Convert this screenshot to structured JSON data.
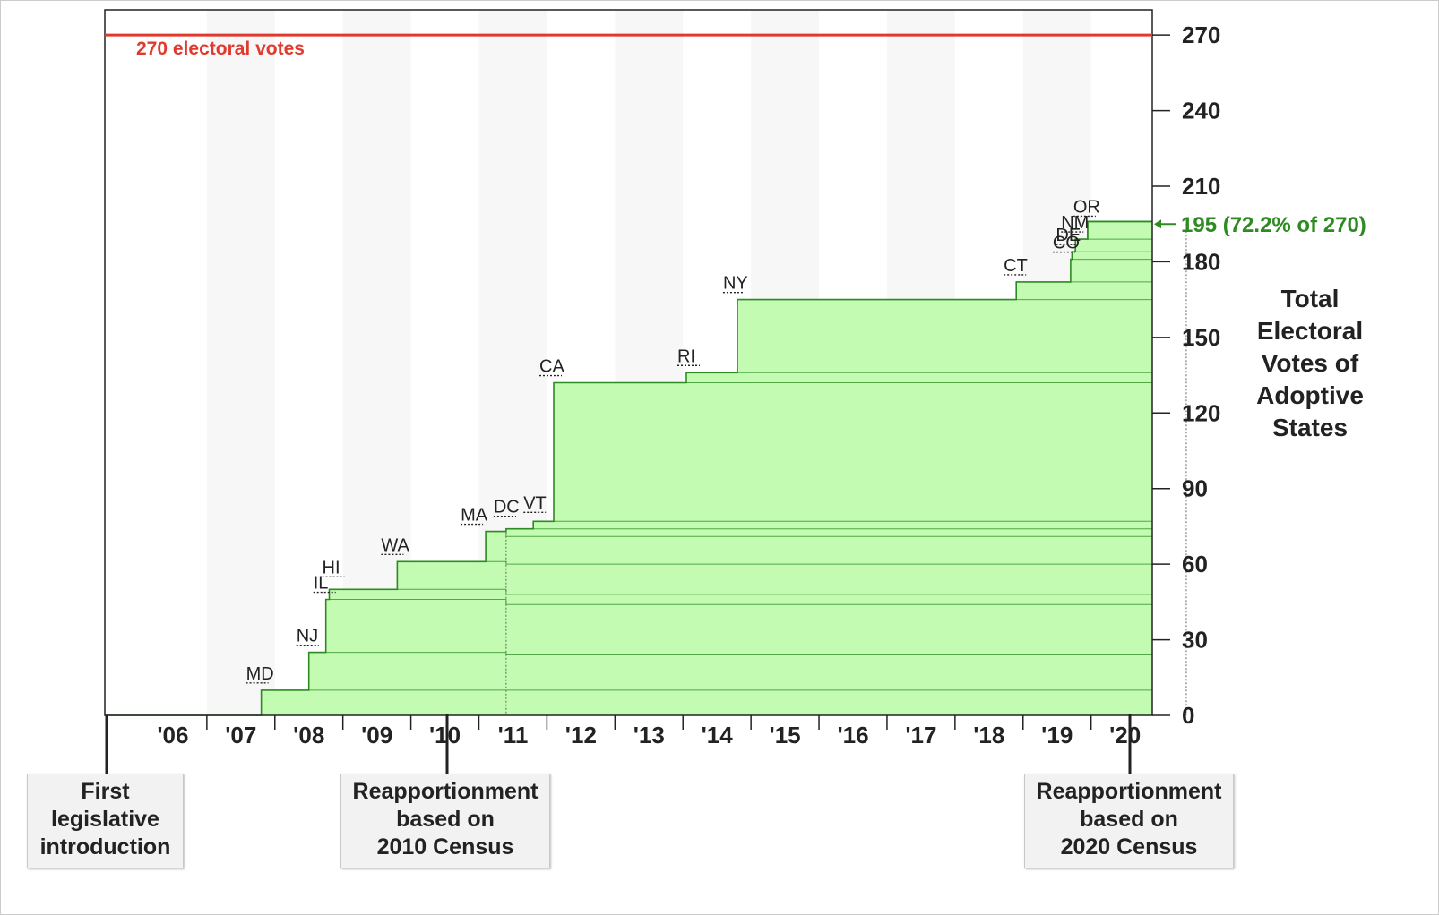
{
  "chart_data": {
    "type": "area",
    "title": "",
    "xlabel": "",
    "ylabel_lines": [
      "Total",
      "Electoral",
      "Votes of",
      "Adoptive",
      "States"
    ],
    "ylim": [
      0,
      280
    ],
    "y_ticks": [
      0,
      30,
      60,
      90,
      120,
      150,
      180,
      210,
      240,
      270
    ],
    "y_axis_side": "right",
    "x_range": [
      2005.0,
      2020.4
    ],
    "x_ticks": [
      {
        "label": "'06",
        "year": 2006
      },
      {
        "label": "'07",
        "year": 2007
      },
      {
        "label": "'08",
        "year": 2008
      },
      {
        "label": "'09",
        "year": 2009
      },
      {
        "label": "'10",
        "year": 2010
      },
      {
        "label": "'11",
        "year": 2011
      },
      {
        "label": "'12",
        "year": 2012
      },
      {
        "label": "'13",
        "year": 2013
      },
      {
        "label": "'14",
        "year": 2014
      },
      {
        "label": "'15",
        "year": 2015
      },
      {
        "label": "'16",
        "year": 2016
      },
      {
        "label": "'17",
        "year": 2017
      },
      {
        "label": "'18",
        "year": 2018
      },
      {
        "label": "'19",
        "year": 2019
      },
      {
        "label": "'20",
        "year": 2020
      }
    ],
    "threshold": {
      "value": 270,
      "label": "270 electoral votes",
      "color": "#e03a2e"
    },
    "current": {
      "value": 195,
      "label": "195 (72.2% of 270)",
      "color": "#2e8b22"
    },
    "series": [
      {
        "state": "MD",
        "date": 2007.3,
        "ev_2000": 10,
        "ev_2010": 10,
        "ev_2020": 10
      },
      {
        "state": "NJ",
        "date": 2008.0,
        "ev_2000": 15,
        "ev_2010": 14,
        "ev_2020": 14
      },
      {
        "state": "IL",
        "date": 2008.25,
        "ev_2000": 21,
        "ev_2010": 20,
        "ev_2020": 19
      },
      {
        "state": "HI",
        "date": 2008.3,
        "ev_2000": 4,
        "ev_2010": 4,
        "ev_2020": 4
      },
      {
        "state": "WA",
        "date": 2009.3,
        "ev_2000": 11,
        "ev_2010": 12,
        "ev_2020": 12
      },
      {
        "state": "MA",
        "date": 2010.6,
        "ev_2000": 12,
        "ev_2010": 11,
        "ev_2020": 11
      },
      {
        "state": "DC",
        "date": 2010.9,
        "ev_2000": 3,
        "ev_2010": 3,
        "ev_2020": 3
      },
      {
        "state": "VT",
        "date": 2011.3,
        "ev_2000": 3,
        "ev_2010": 3,
        "ev_2020": 3
      },
      {
        "state": "CA",
        "date": 2011.6,
        "ev_2000": 55,
        "ev_2010": 55,
        "ev_2020": 54
      },
      {
        "state": "RI",
        "date": 2013.55,
        "ev_2000": 4,
        "ev_2010": 4,
        "ev_2020": 4
      },
      {
        "state": "NY",
        "date": 2014.3,
        "ev_2000": 29,
        "ev_2010": 29,
        "ev_2020": 28
      },
      {
        "state": "CT",
        "date": 2018.4,
        "ev_2000": 7,
        "ev_2010": 7,
        "ev_2020": 7
      },
      {
        "state": "CO",
        "date": 2019.2,
        "ev_2000": 9,
        "ev_2010": 9,
        "ev_2020": 10
      },
      {
        "state": "DE",
        "date": 2019.22,
        "ev_2000": 3,
        "ev_2010": 3,
        "ev_2020": 3
      },
      {
        "state": "NM",
        "date": 2019.27,
        "ev_2000": 5,
        "ev_2010": 5,
        "ev_2020": 5
      },
      {
        "state": "OR",
        "date": 2019.45,
        "ev_2000": 7,
        "ev_2010": 7,
        "ev_2020": 8
      }
    ],
    "events": [
      {
        "date": 2005.05,
        "lines": [
          "First",
          "legislative",
          "introduction"
        ]
      },
      {
        "date": 2010.9,
        "lines": [
          "Reapportionment",
          "based on",
          "2010 Census"
        ]
      },
      {
        "date": 2020.9,
        "lines": [
          "Reapportionment",
          "based on",
          "2020 Census"
        ]
      }
    ],
    "colors": {
      "fill": "#c3fbb2",
      "line": "#2e8b22",
      "threshold": "#e03a2e",
      "band": "#f7f7f7"
    }
  }
}
